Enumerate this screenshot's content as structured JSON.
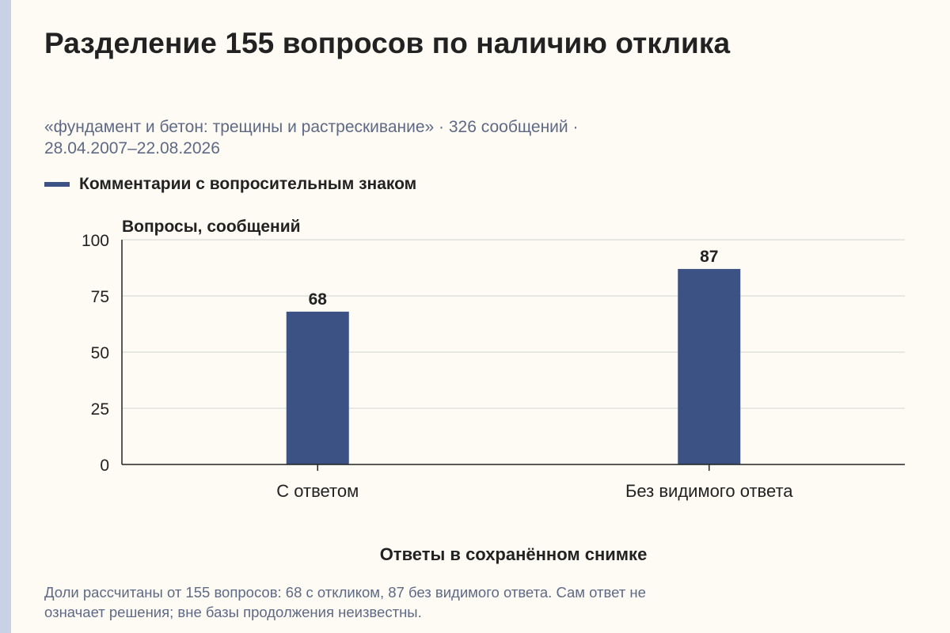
{
  "title": "Разделение 155 вопросов по наличию отклика",
  "subtitle_line1": "«фундамент и бетон: трещины и растрескивание» · 326 сообщений ·",
  "subtitle_line2": "28.04.2007–22.08.2026",
  "footnote_line1": "Доли рассчитаны от 155 вопросов: 68 с откликом, 87 без видимого ответа. Сам ответ не",
  "footnote_line2": "означает решения; вне базы продолжения неизвестны.",
  "colors": {
    "bar": "#3c5285",
    "background": "#fdfbf3",
    "muted_text": "#5e6985"
  },
  "chart_data": {
    "type": "bar",
    "categories": [
      "С ответом",
      "Без видимого ответа"
    ],
    "series": [
      {
        "name": "Комментарии с вопросительным знаком",
        "values": [
          68,
          87
        ]
      }
    ],
    "data_labels": [
      "68",
      "87"
    ],
    "xlabel": "Ответы в сохранённом снимке",
    "ylabel": "Вопросы, сообщений",
    "ylim": [
      0,
      100
    ],
    "yticks": [
      0,
      25,
      50,
      75,
      100
    ],
    "ytick_labels": [
      "0",
      "25",
      "50",
      "75",
      "100"
    ],
    "grid": true,
    "legend": "top-left"
  }
}
